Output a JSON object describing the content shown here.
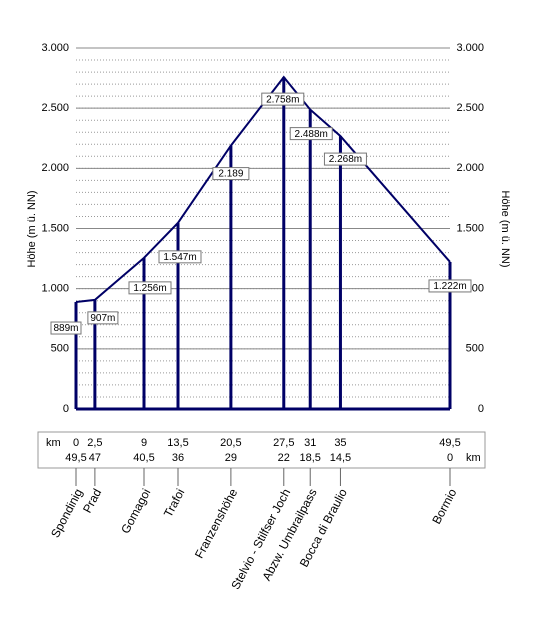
{
  "chart_data": {
    "type": "line",
    "ylabel": "Höhe (m ü. NN)",
    "y2label": "Höhe (m ü. NN)",
    "xlim": [
      0,
      49.5
    ],
    "x": [
      0,
      2.5,
      9,
      13.5,
      20.5,
      27.5,
      31,
      35,
      49.5
    ],
    "x_labels": [
      "0",
      "2,5",
      "9",
      "13,5",
      "20,5",
      "27,5",
      "31",
      "35",
      "49,5"
    ],
    "remaining_labels": [
      "49,5",
      "47",
      "40,5",
      "36",
      "29",
      "22",
      "18,5",
      "14,5",
      "0"
    ],
    "km_label": "km",
    "categories": [
      "Spondinig",
      "Prad",
      "Gomagoi",
      "Trafoi",
      "Franzenshöhe",
      "Stelvio - Stilfser Joch",
      "Abzw. Umbrailpass",
      "Bocca di Braulio",
      "Bormio"
    ],
    "series": [
      {
        "color": "#000066",
        "values": [
          889,
          907,
          1256,
          1547,
          2189,
          2758,
          2488,
          2268,
          1222
        ],
        "value_labels": [
          "889m",
          "907m",
          "1.256m",
          "1.547m",
          "2.189",
          "2.758m",
          "2.488m",
          "2.268m",
          "1.222m"
        ]
      }
    ],
    "ylim": [
      0,
      3000
    ],
    "yticks": [
      {
        "value": 0,
        "label": "0"
      },
      {
        "value": 500,
        "label": "500"
      },
      {
        "value": 1000,
        "label": "1.000"
      },
      {
        "value": 1500,
        "label": "1.500"
      },
      {
        "value": 2000,
        "label": "2.000"
      },
      {
        "value": 2500,
        "label": "2.500"
      },
      {
        "value": 3000,
        "label": "3.000"
      }
    ],
    "grid": true
  }
}
